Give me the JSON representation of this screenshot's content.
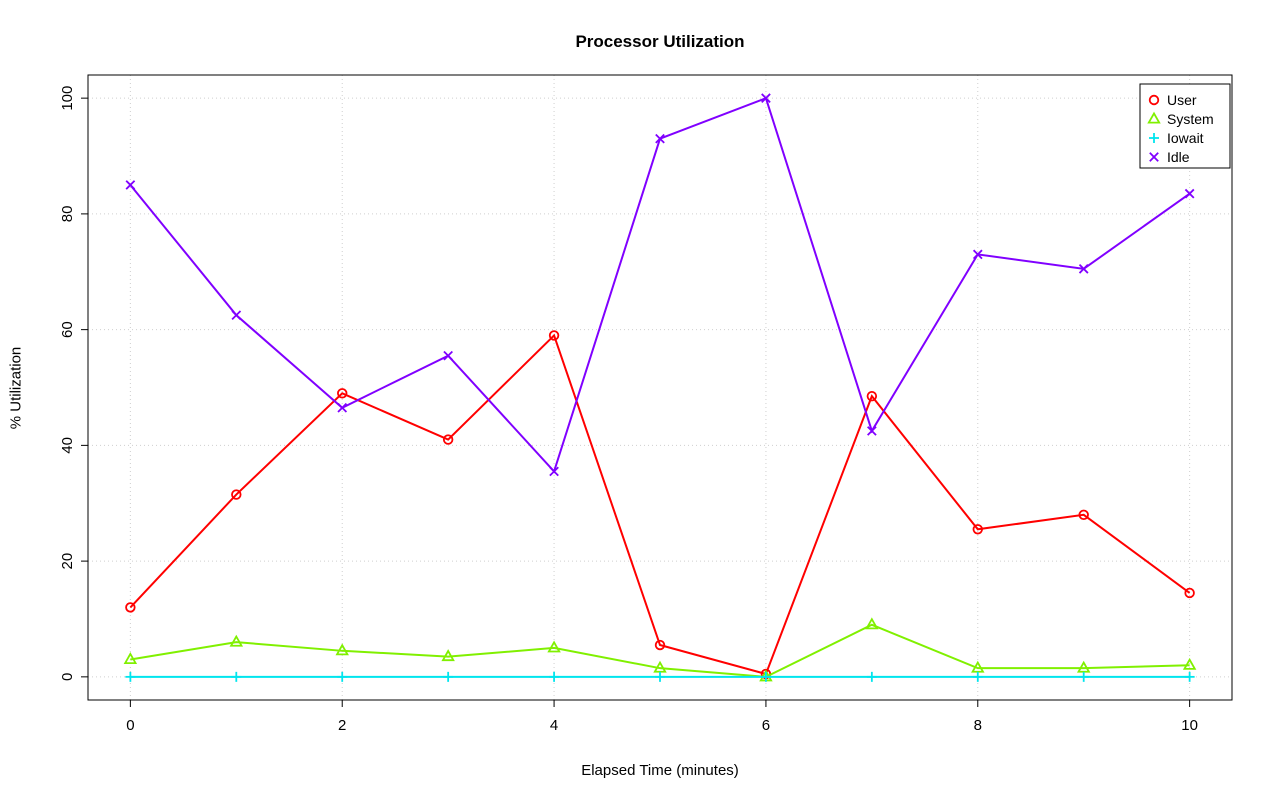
{
  "chart_data": {
    "type": "line",
    "title": "Processor Utilization",
    "xlabel": "Elapsed Time (minutes)",
    "ylabel": "% Utilization",
    "x": [
      0,
      1,
      2,
      3,
      4,
      5,
      6,
      7,
      8,
      9,
      10
    ],
    "xticks": [
      0,
      2,
      4,
      6,
      8,
      10
    ],
    "yticks": [
      0,
      20,
      40,
      60,
      80,
      100
    ],
    "xlim": [
      0,
      10
    ],
    "ylim": [
      0,
      100
    ],
    "grid": true,
    "legend_position": "topright",
    "background": "#ffffff",
    "grid_color": "#cfcfcf",
    "series": [
      {
        "name": "User",
        "color": "#ff0000",
        "marker": "circle",
        "values": [
          12,
          31.5,
          49,
          41,
          59,
          5.5,
          0.5,
          48.5,
          25.5,
          28,
          14.5
        ]
      },
      {
        "name": "System",
        "color": "#80f000",
        "marker": "triangle",
        "values": [
          3,
          6,
          4.5,
          3.5,
          5,
          1.5,
          0,
          9,
          1.5,
          1.5,
          2
        ]
      },
      {
        "name": "Iowait",
        "color": "#00e5ee",
        "marker": "plus",
        "values": [
          0,
          0,
          0,
          0,
          0,
          0,
          0,
          0,
          0,
          0,
          0
        ]
      },
      {
        "name": "Idle",
        "color": "#8000ff",
        "marker": "x",
        "values": [
          85,
          62.5,
          46.5,
          55.5,
          35.5,
          93,
          100,
          42.5,
          73,
          70.5,
          83.5
        ]
      }
    ]
  }
}
